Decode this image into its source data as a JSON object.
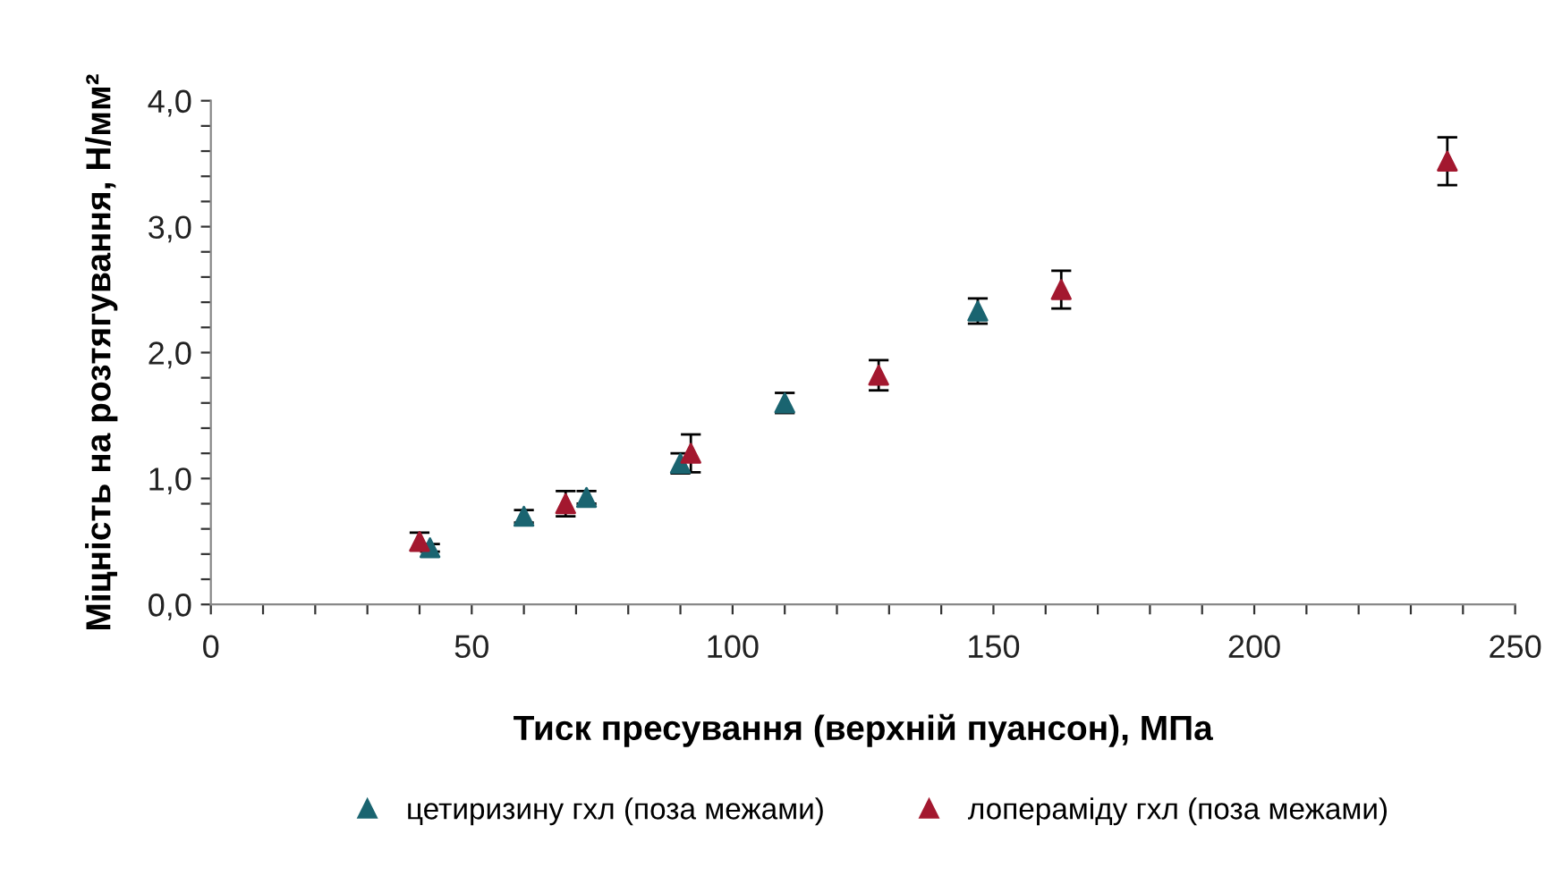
{
  "chart_data": {
    "type": "scatter",
    "xlabel": "Тиск пресування (верхній пуансон), МПа",
    "ylabel": "Міцність на розтягування, Н/мм²",
    "xlim": [
      0,
      250
    ],
    "ylim": [
      0,
      4
    ],
    "xticks": [
      0,
      {
        "value": 10,
        "label": null
      },
      {
        "value": 20,
        "label": null
      },
      {
        "value": 30,
        "label": null
      },
      {
        "value": 40,
        "label": null
      },
      50,
      {
        "value": 60,
        "label": null
      },
      {
        "value": 70,
        "label": null
      },
      {
        "value": 80,
        "label": null
      },
      {
        "value": 90,
        "label": null
      },
      100,
      {
        "value": 110,
        "label": null
      },
      {
        "value": 120,
        "label": null
      },
      {
        "value": 130,
        "label": null
      },
      {
        "value": 140,
        "label": null
      },
      150,
      {
        "value": 160,
        "label": null
      },
      {
        "value": 170,
        "label": null
      },
      {
        "value": 180,
        "label": null
      },
      {
        "value": 190,
        "label": null
      },
      200,
      {
        "value": 210,
        "label": null
      },
      {
        "value": 220,
        "label": null
      },
      {
        "value": 230,
        "label": null
      },
      {
        "value": 240,
        "label": null
      },
      250
    ],
    "yticks": [
      {
        "value": 0,
        "label": "0,0"
      },
      {
        "value": 0.2,
        "label": null
      },
      {
        "value": 0.4,
        "label": null
      },
      {
        "value": 0.6,
        "label": null
      },
      {
        "value": 0.8,
        "label": null
      },
      {
        "value": 1,
        "label": "1,0"
      },
      {
        "value": 1.2,
        "label": null
      },
      {
        "value": 1.4,
        "label": null
      },
      {
        "value": 1.6,
        "label": null
      },
      {
        "value": 1.8,
        "label": null
      },
      {
        "value": 2,
        "label": "2,0"
      },
      {
        "value": 2.2,
        "label": null
      },
      {
        "value": 2.4,
        "label": null
      },
      {
        "value": 2.6,
        "label": null
      },
      {
        "value": 2.8,
        "label": null
      },
      {
        "value": 3,
        "label": "3,0"
      },
      {
        "value": 3.2,
        "label": null
      },
      {
        "value": 3.4,
        "label": null
      },
      {
        "value": 3.6,
        "label": null
      },
      {
        "value": 3.8,
        "label": null
      },
      {
        "value": 4,
        "label": "4,0"
      }
    ],
    "grid": false,
    "legend": "bottom",
    "marker": "triangle",
    "series": [
      {
        "name": "цетиризину гхл (поза межами)",
        "color": "#1a6470",
        "x": [
          42,
          60,
          72,
          90,
          110,
          147
        ],
        "values": [
          0.45,
          0.7,
          0.85,
          1.12,
          1.6,
          2.33
        ],
        "errors": [
          0.03,
          0.05,
          0.05,
          0.08,
          0.08,
          0.1
        ]
      },
      {
        "name": "лопераміду гхл (поза межами)",
        "color": "#a3182f",
        "x": [
          40,
          68,
          92,
          128,
          163,
          237
        ],
        "values": [
          0.5,
          0.8,
          1.2,
          1.82,
          2.5,
          3.52
        ],
        "errors": [
          0.07,
          0.1,
          0.15,
          0.12,
          0.15,
          0.19
        ]
      }
    ]
  }
}
